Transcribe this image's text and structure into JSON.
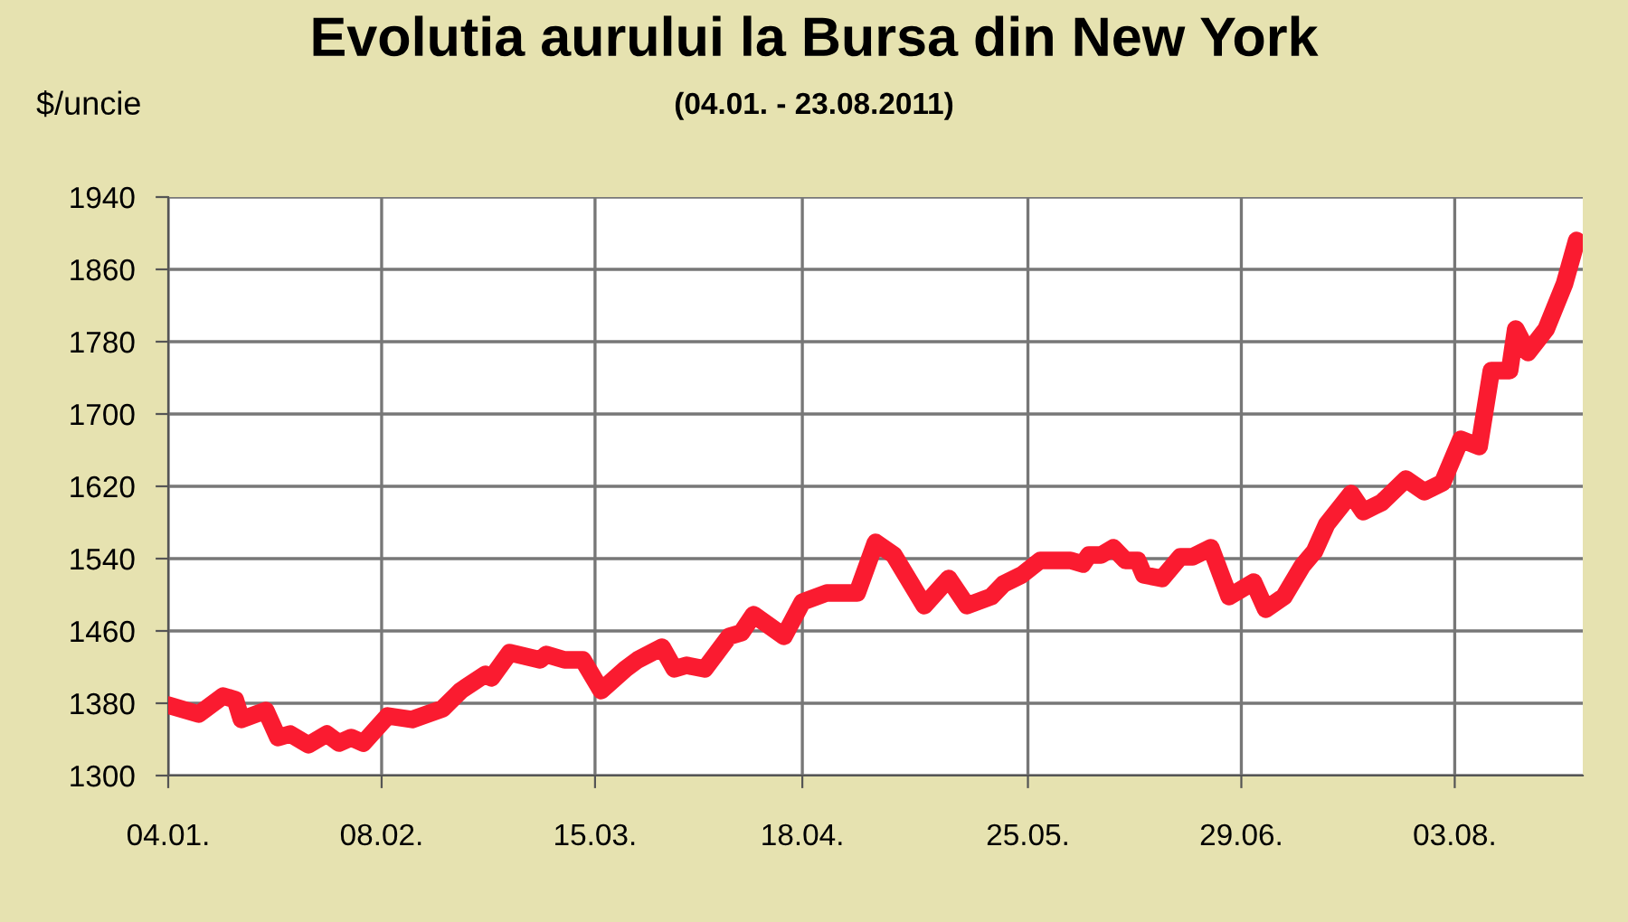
{
  "chart_data": {
    "type": "line",
    "title": "Evolutia aurului la Bursa din New York",
    "subtitle": "(04.01. - 23.08.2011)",
    "ylabel": "$/uncie",
    "x": [
      "2011-01-04",
      "2011-01-09",
      "2011-01-13",
      "2011-01-15",
      "2011-01-16",
      "2011-01-20",
      "2011-01-22",
      "2011-01-24",
      "2011-01-27",
      "2011-01-30",
      "2011-02-01",
      "2011-02-03",
      "2011-02-05",
      "2011-02-09",
      "2011-02-13",
      "2011-02-18",
      "2011-02-21",
      "2011-02-25",
      "2011-02-26",
      "2011-03-01",
      "2011-03-06",
      "2011-03-07",
      "2011-03-10",
      "2011-03-13",
      "2011-03-16",
      "2011-03-20",
      "2011-03-22",
      "2011-03-26",
      "2011-03-28",
      "2011-03-30",
      "2011-04-02",
      "2011-04-06",
      "2011-04-08",
      "2011-04-10",
      "2011-04-15",
      "2011-04-18",
      "2011-04-22",
      "2011-04-27",
      "2011-04-30",
      "2011-05-03",
      "2011-05-08",
      "2011-05-12",
      "2011-05-15",
      "2011-05-19",
      "2011-05-21",
      "2011-05-24",
      "2011-05-27",
      "2011-06-01",
      "2011-06-03",
      "2011-06-04",
      "2011-06-06",
      "2011-06-08",
      "2011-06-10",
      "2011-06-12",
      "2011-06-13",
      "2011-06-16",
      "2011-06-19",
      "2011-06-21",
      "2011-06-24",
      "2011-06-27",
      "2011-07-01",
      "2011-07-03",
      "2011-07-06",
      "2011-07-09",
      "2011-07-11",
      "2011-07-13",
      "2011-07-17",
      "2011-07-19",
      "2011-07-22",
      "2011-07-26",
      "2011-07-29",
      "2011-08-01",
      "2011-08-04",
      "2011-08-07",
      "2011-08-09",
      "2011-08-12",
      "2011-08-13",
      "2011-08-15",
      "2011-08-18",
      "2011-08-21",
      "2011-08-23"
    ],
    "series": [
      {
        "color": "#fa1b30",
        "values": [
          1378,
          1368,
          1388,
          1384,
          1362,
          1372,
          1342,
          1346,
          1334,
          1346,
          1336,
          1342,
          1336,
          1366,
          1362,
          1374,
          1394,
          1412,
          1408,
          1436,
          1428,
          1434,
          1428,
          1428,
          1394,
          1418,
          1428,
          1442,
          1418,
          1422,
          1418,
          1454,
          1458,
          1478,
          1454,
          1492,
          1502,
          1502,
          1558,
          1544,
          1488,
          1518,
          1488,
          1498,
          1512,
          1522,
          1538,
          1538,
          1534,
          1544,
          1544,
          1552,
          1538,
          1538,
          1522,
          1518,
          1542,
          1542,
          1552,
          1498,
          1514,
          1484,
          1498,
          1532,
          1548,
          1578,
          1612,
          1592,
          1602,
          1628,
          1614,
          1624,
          1672,
          1664,
          1748,
          1748,
          1794,
          1768,
          1794,
          1844,
          1892
        ]
      }
    ],
    "xlim": [
      "2011-01-04",
      "2011-08-24"
    ],
    "xticks": [
      {
        "value": "2011-01-04",
        "label": "04.01."
      },
      {
        "value": "2011-02-08",
        "label": "08.02."
      },
      {
        "value": "2011-03-15",
        "label": "15.03."
      },
      {
        "value": "2011-04-18",
        "label": "18.04."
      },
      {
        "value": "2011-05-25",
        "label": "25.05."
      },
      {
        "value": "2011-06-29",
        "label": "29.06."
      },
      {
        "value": "2011-08-03",
        "label": "03.08."
      }
    ],
    "ylim": [
      1300,
      1940
    ],
    "yticks": [
      1300,
      1380,
      1460,
      1540,
      1620,
      1700,
      1780,
      1860,
      1940
    ],
    "grid": true,
    "legend": false,
    "marker": "none",
    "line_style": "solid"
  }
}
